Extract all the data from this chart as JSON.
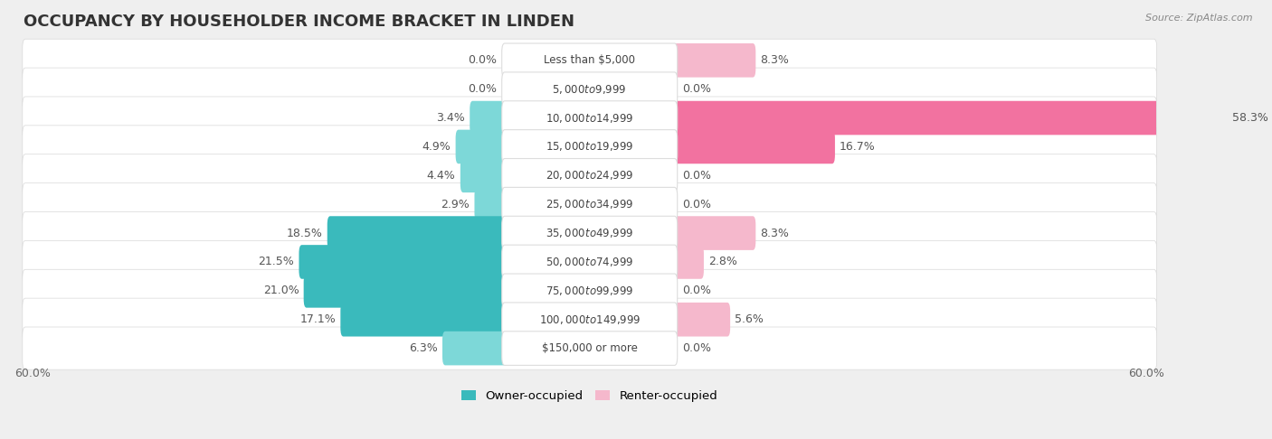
{
  "title": "OCCUPANCY BY HOUSEHOLDER INCOME BRACKET IN LINDEN",
  "source": "Source: ZipAtlas.com",
  "categories": [
    "Less than $5,000",
    "$5,000 to $9,999",
    "$10,000 to $14,999",
    "$15,000 to $19,999",
    "$20,000 to $24,999",
    "$25,000 to $34,999",
    "$35,000 to $49,999",
    "$50,000 to $74,999",
    "$75,000 to $99,999",
    "$100,000 to $149,999",
    "$150,000 or more"
  ],
  "owner_values": [
    0.0,
    0.0,
    3.4,
    4.9,
    4.4,
    2.9,
    18.5,
    21.5,
    21.0,
    17.1,
    6.3
  ],
  "renter_values": [
    8.3,
    0.0,
    58.3,
    16.7,
    0.0,
    0.0,
    8.3,
    2.8,
    0.0,
    5.6,
    0.0
  ],
  "owner_color_light": "#7DD8D8",
  "owner_color_dark": "#3ABABC",
  "renter_color_light": "#F5B8CC",
  "renter_color_vivid": "#F272A0",
  "bg_color": "#EFEFEF",
  "row_bg_color": "#FFFFFF",
  "axis_limit": 60.0,
  "label_halfwidth": 9.0,
  "title_fontsize": 13,
  "value_fontsize": 9,
  "category_fontsize": 8.5,
  "legend_fontsize": 9.5
}
